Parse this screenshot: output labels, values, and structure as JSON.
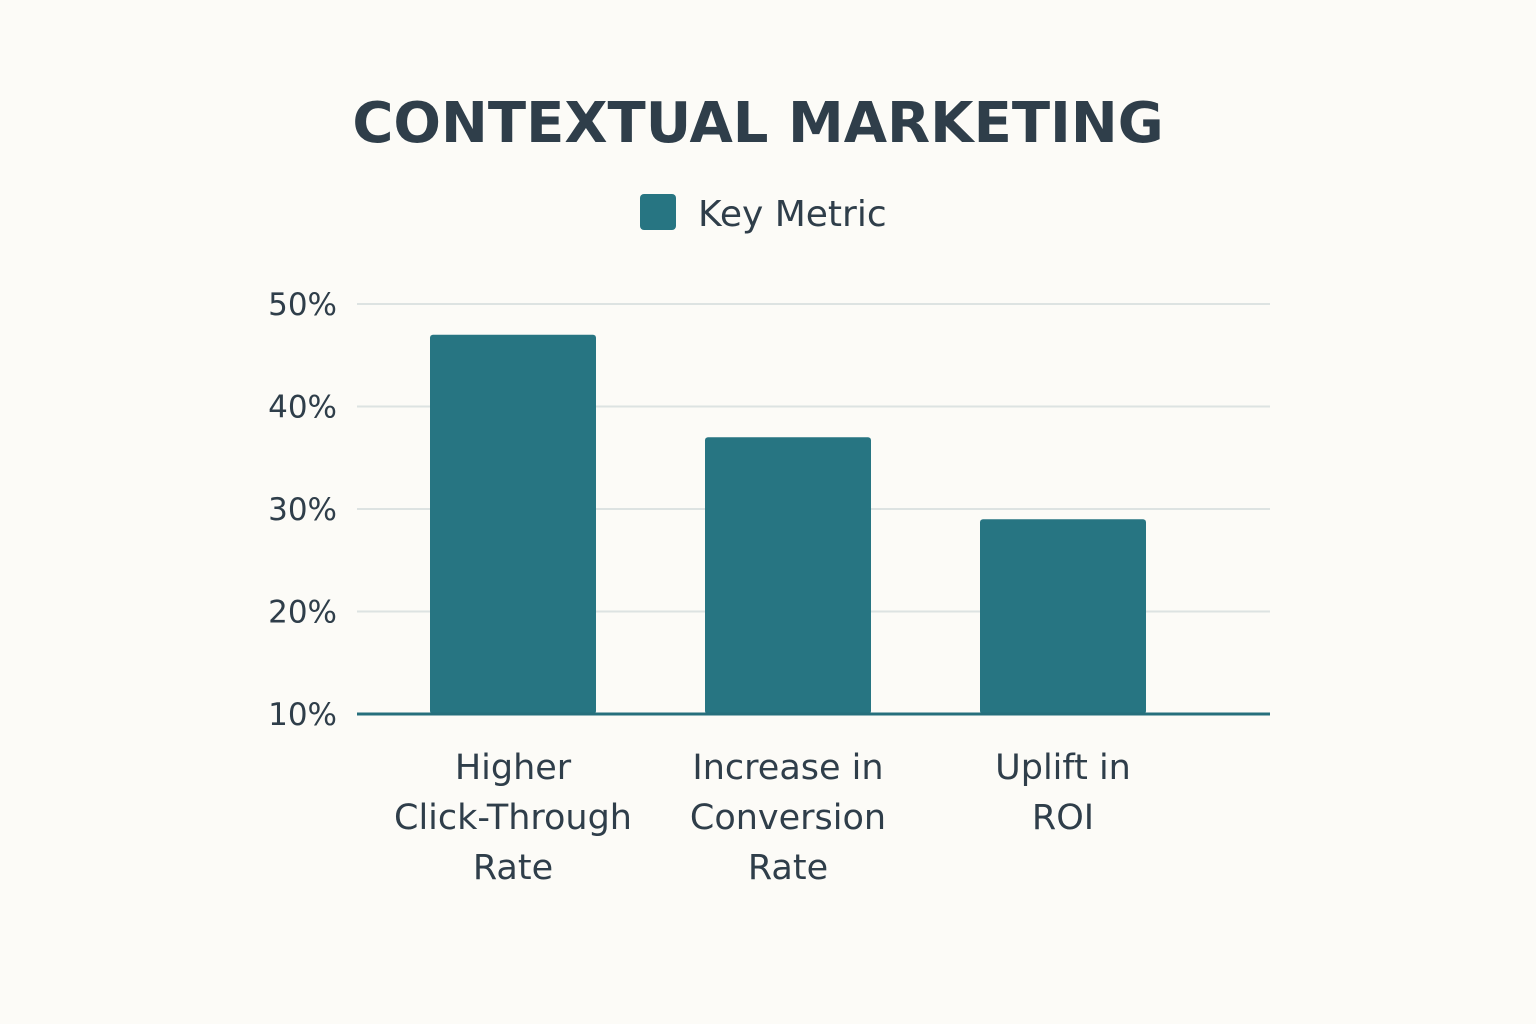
{
  "chart_data": {
    "type": "bar",
    "title": "CONTEXTUAL MARKETING",
    "categories": [
      [
        "Higher",
        "Click-Through",
        "Rate"
      ],
      [
        "Increase in",
        "Conversion",
        "Rate"
      ],
      [
        "Uplift in",
        "ROI"
      ]
    ],
    "series": [
      {
        "name": "Key Metric",
        "values": [
          47,
          37,
          29
        ],
        "color": "#277582"
      }
    ],
    "yticks": [
      "10%",
      "20%",
      "30%",
      "40%",
      "50%"
    ],
    "ylim": [
      10,
      50
    ],
    "grid": true,
    "legend": "top-center"
  }
}
